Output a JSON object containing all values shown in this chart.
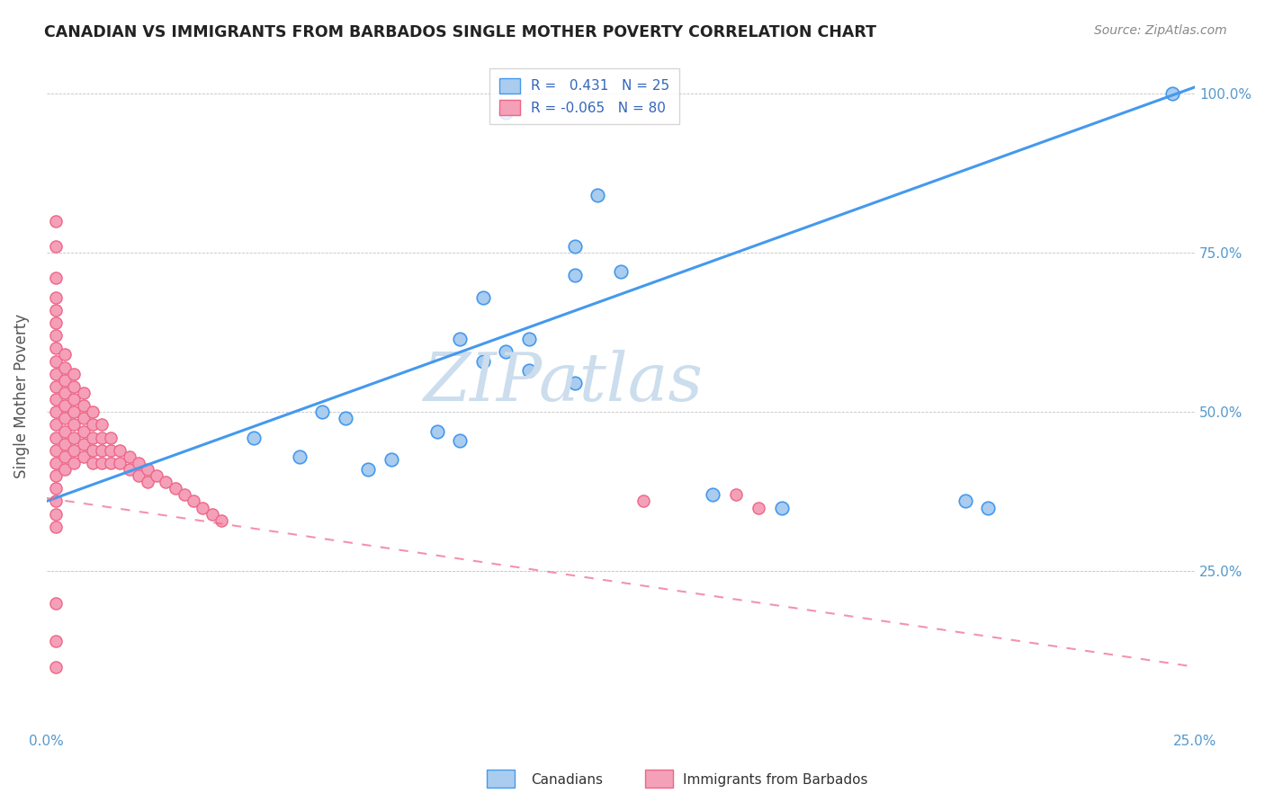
{
  "title": "CANADIAN VS IMMIGRANTS FROM BARBADOS SINGLE MOTHER POVERTY CORRELATION CHART",
  "source": "Source: ZipAtlas.com",
  "xlabel": "",
  "ylabel": "Single Mother Poverty",
  "xlim": [
    0.0,
    0.25
  ],
  "ylim": [
    0.0,
    1.05
  ],
  "x_ticks": [
    0.0,
    0.05,
    0.1,
    0.15,
    0.2,
    0.25
  ],
  "x_tick_labels": [
    "0.0%",
    "",
    "",
    "",
    "",
    "25.0%"
  ],
  "y_ticks": [
    0.25,
    0.5,
    0.75,
    1.0
  ],
  "y_tick_labels": [
    "25.0%",
    "50.0%",
    "75.0%",
    "100.0%"
  ],
  "R_canadian": 0.431,
  "N_canadian": 25,
  "R_barbados": -0.065,
  "N_barbados": 80,
  "canadian_color": "#aaccee",
  "barbados_color": "#f4a0b8",
  "trendline_canadian_color": "#4499ee",
  "trendline_barbados_color": "#ee6688",
  "background_color": "#ffffff",
  "watermark": "ZIPatlas",
  "watermark_color": "#ccdded",
  "canadians_x": [
    0.1,
    0.12,
    0.115,
    0.095,
    0.125,
    0.115,
    0.09,
    0.105,
    0.1,
    0.095,
    0.105,
    0.115,
    0.085,
    0.09,
    0.045,
    0.06,
    0.065,
    0.055,
    0.075,
    0.07,
    0.16,
    0.205,
    0.245,
    0.2,
    0.145
  ],
  "canadians_y": [
    0.97,
    0.84,
    0.76,
    0.68,
    0.72,
    0.715,
    0.615,
    0.615,
    0.595,
    0.58,
    0.565,
    0.545,
    0.47,
    0.455,
    0.46,
    0.5,
    0.49,
    0.43,
    0.425,
    0.41,
    0.35,
    0.35,
    1.0,
    0.36,
    0.37
  ],
  "barbados_x": [
    0.002,
    0.002,
    0.002,
    0.002,
    0.002,
    0.002,
    0.002,
    0.002,
    0.002,
    0.002,
    0.002,
    0.002,
    0.002,
    0.002,
    0.002,
    0.002,
    0.002,
    0.002,
    0.002,
    0.002,
    0.004,
    0.004,
    0.004,
    0.004,
    0.004,
    0.004,
    0.004,
    0.004,
    0.004,
    0.004,
    0.006,
    0.006,
    0.006,
    0.006,
    0.006,
    0.006,
    0.006,
    0.006,
    0.008,
    0.008,
    0.008,
    0.008,
    0.008,
    0.008,
    0.01,
    0.01,
    0.01,
    0.01,
    0.01,
    0.012,
    0.012,
    0.012,
    0.012,
    0.014,
    0.014,
    0.014,
    0.016,
    0.016,
    0.018,
    0.018,
    0.02,
    0.02,
    0.022,
    0.022,
    0.024,
    0.026,
    0.028,
    0.03,
    0.032,
    0.034,
    0.036,
    0.038,
    0.002,
    0.002,
    0.002,
    0.002,
    0.002,
    0.13,
    0.15,
    0.155
  ],
  "barbados_y": [
    0.71,
    0.68,
    0.66,
    0.64,
    0.62,
    0.6,
    0.58,
    0.56,
    0.54,
    0.52,
    0.5,
    0.48,
    0.46,
    0.44,
    0.42,
    0.4,
    0.38,
    0.36,
    0.34,
    0.32,
    0.59,
    0.57,
    0.55,
    0.53,
    0.51,
    0.49,
    0.47,
    0.45,
    0.43,
    0.41,
    0.56,
    0.54,
    0.52,
    0.5,
    0.48,
    0.46,
    0.44,
    0.42,
    0.53,
    0.51,
    0.49,
    0.47,
    0.45,
    0.43,
    0.5,
    0.48,
    0.46,
    0.44,
    0.42,
    0.48,
    0.46,
    0.44,
    0.42,
    0.46,
    0.44,
    0.42,
    0.44,
    0.42,
    0.43,
    0.41,
    0.42,
    0.4,
    0.41,
    0.39,
    0.4,
    0.39,
    0.38,
    0.37,
    0.36,
    0.35,
    0.34,
    0.33,
    0.8,
    0.76,
    0.2,
    0.14,
    0.1,
    0.36,
    0.37,
    0.35
  ]
}
